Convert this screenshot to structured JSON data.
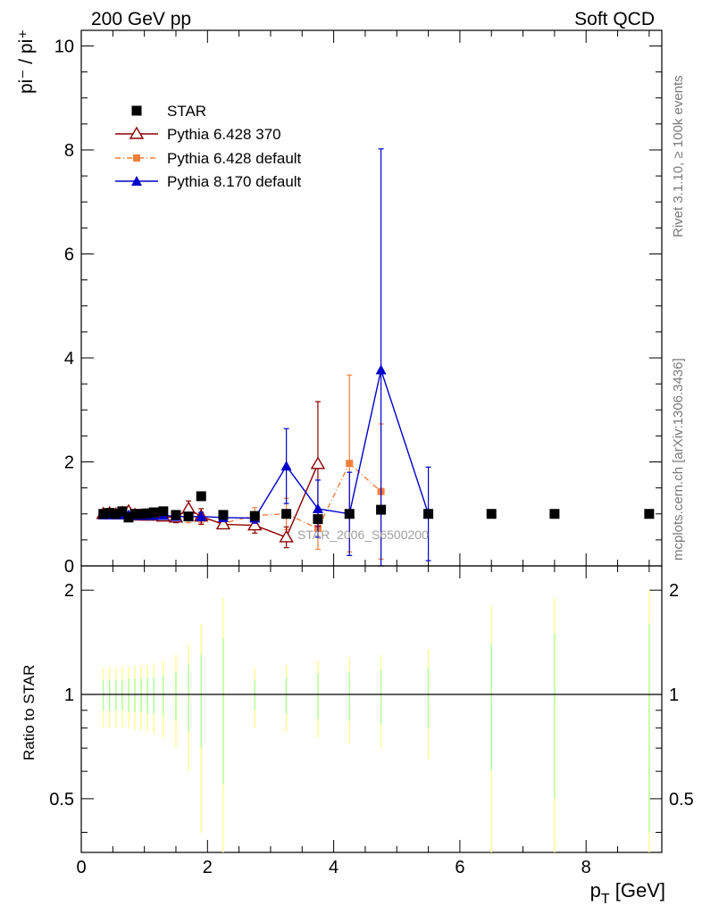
{
  "header": {
    "left": "200 GeV pp",
    "right": "Soft QCD"
  },
  "side_labels": {
    "rivet": "Rivet 3.1.10, ≥ 100k events",
    "mcplots": "mcplots.cern.ch [arXiv:1306.3436]"
  },
  "watermark": "STAR_2006_S6500200",
  "chart_data": [
    {
      "type": "scatter",
      "panel": "main",
      "ylabel": "pi⁻ / pi⁺",
      "xlim": [
        0,
        9.2
      ],
      "ylim": [
        0,
        10.3
      ],
      "y_ticks": [
        0,
        2,
        4,
        6,
        8,
        10
      ],
      "legend_position": "top-left",
      "series": [
        {
          "name": "STAR",
          "color": "#000000",
          "marker": "square",
          "x": [
            0.35,
            0.45,
            0.55,
            0.65,
            0.75,
            0.85,
            0.95,
            1.05,
            1.15,
            1.3,
            1.5,
            1.7,
            1.9,
            2.25,
            2.75,
            3.25,
            3.75,
            4.25,
            4.75,
            5.5,
            6.5,
            7.5,
            9.0
          ],
          "y": [
            1.0,
            1.02,
            1.0,
            1.05,
            0.93,
            1.0,
            1.0,
            1.01,
            1.03,
            1.05,
            0.98,
            0.95,
            1.34,
            0.98,
            0.96,
            1.0,
            0.9,
            1.0,
            1.08,
            1.0,
            1.0,
            1.0,
            1.0
          ]
        },
        {
          "name": "Pythia 6.428 370",
          "color": "#8b0000",
          "marker": "open-triangle",
          "line": "solid",
          "x": [
            0.35,
            0.45,
            0.55,
            0.65,
            0.75,
            0.85,
            0.95,
            1.05,
            1.15,
            1.3,
            1.5,
            1.7,
            1.9,
            2.25,
            2.75,
            3.25,
            3.75
          ],
          "y": [
            1.0,
            1.01,
            0.99,
            1.02,
            1.05,
            0.98,
            0.97,
            0.97,
            0.97,
            0.95,
            0.93,
            1.1,
            0.95,
            0.8,
            0.78,
            0.55,
            1.96
          ],
          "err": [
            0.06,
            0.06,
            0.06,
            0.06,
            0.06,
            0.06,
            0.06,
            0.07,
            0.07,
            0.08,
            0.1,
            0.15,
            0.15,
            0.08,
            0.15,
            0.2,
            1.2
          ]
        },
        {
          "name": "Pythia 6.428 default",
          "color": "#f07f3c",
          "marker": "filled-square-small",
          "line": "dashdot",
          "x": [
            0.35,
            0.45,
            0.55,
            0.65,
            0.75,
            0.85,
            0.95,
            1.05,
            1.15,
            1.3,
            1.5,
            1.7,
            1.9,
            2.25,
            2.75,
            3.25,
            3.75,
            4.25,
            4.75
          ],
          "y": [
            1.0,
            1.0,
            1.01,
            0.99,
            0.98,
            1.0,
            0.97,
            0.95,
            1.0,
            1.0,
            0.92,
            0.93,
            0.93,
            0.82,
            0.97,
            1.0,
            0.72,
            1.97,
            1.43
          ],
          "err": [
            0.05,
            0.05,
            0.05,
            0.05,
            0.05,
            0.05,
            0.05,
            0.06,
            0.06,
            0.07,
            0.08,
            0.1,
            0.1,
            0.1,
            0.15,
            0.3,
            0.4,
            1.7,
            1.3
          ]
        },
        {
          "name": "Pythia 8.170 default",
          "color": "#0000cc",
          "marker": "filled-triangle",
          "line": "solid",
          "x": [
            0.35,
            0.45,
            0.55,
            0.65,
            0.75,
            0.85,
            0.95,
            1.05,
            1.15,
            1.3,
            1.5,
            1.7,
            1.9,
            2.25,
            2.75,
            3.25,
            3.75,
            4.25,
            4.75,
            5.5
          ],
          "y": [
            0.98,
            0.98,
            0.98,
            0.98,
            0.98,
            0.97,
            0.97,
            0.97,
            0.97,
            0.97,
            0.95,
            0.95,
            0.95,
            0.93,
            0.92,
            1.92,
            1.1,
            1.0,
            3.77,
            1.0
          ],
          "err": [
            0.04,
            0.04,
            0.04,
            0.04,
            0.04,
            0.04,
            0.04,
            0.05,
            0.05,
            0.05,
            0.06,
            0.07,
            0.08,
            0.08,
            0.1,
            0.72,
            0.55,
            0.8,
            4.25,
            0.9
          ]
        }
      ]
    },
    {
      "type": "line",
      "panel": "ratio",
      "ylabel": "Ratio to STAR",
      "xlabel": "p_T [GeV]",
      "xlim": [
        0,
        9.2
      ],
      "ylim": [
        0.35,
        2.35
      ],
      "scale": "log",
      "x_ticks": [
        0,
        2,
        4,
        6,
        8
      ],
      "y_ticks": [
        0.5,
        1,
        2
      ],
      "reference": 1,
      "bands": {
        "x": [
          0.35,
          0.45,
          0.55,
          0.65,
          0.75,
          0.85,
          0.95,
          1.05,
          1.15,
          1.3,
          1.5,
          1.7,
          1.9,
          2.25,
          2.75,
          3.25,
          3.75,
          4.25,
          4.75,
          5.5,
          6.5,
          7.5,
          9.0
        ],
        "stat": [
          0.1,
          0.1,
          0.1,
          0.1,
          0.11,
          0.11,
          0.11,
          0.12,
          0.12,
          0.13,
          0.16,
          0.22,
          0.3,
          0.45,
          0.1,
          0.12,
          0.15,
          0.16,
          0.18,
          0.2,
          0.4,
          0.5,
          0.6
        ],
        "total": [
          0.2,
          0.2,
          0.2,
          0.2,
          0.2,
          0.21,
          0.21,
          0.22,
          0.23,
          0.25,
          0.3,
          0.4,
          0.6,
          0.9,
          0.2,
          0.22,
          0.25,
          0.28,
          0.3,
          0.35,
          0.8,
          0.9,
          1.0
        ],
        "stat_color": "#b5ff9e",
        "total_color": "#ffff99"
      }
    }
  ]
}
